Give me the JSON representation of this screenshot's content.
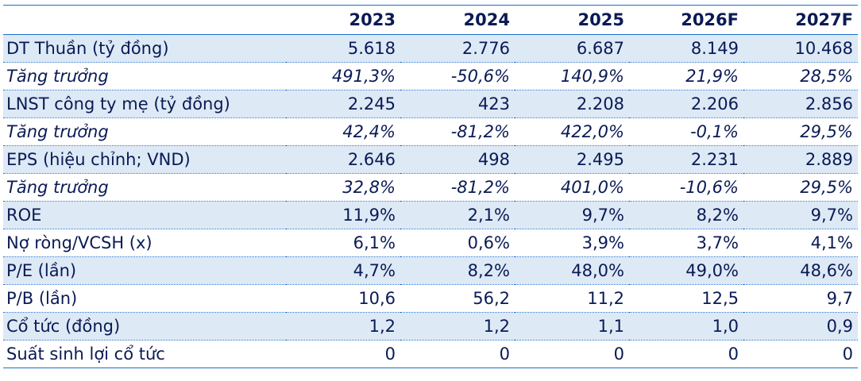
{
  "header": [
    "",
    "2023",
    "2024",
    "2025",
    "2026F",
    "2027F"
  ],
  "rows": [
    {
      "label": "DT Thuần (tỷ đồng)",
      "values": [
        "5.618",
        "2.776",
        "6.687",
        "8.149",
        "10.468"
      ]
    },
    {
      "label": "Tăng trưởng",
      "values": [
        "491,3%",
        "-50,6%",
        "140,9%",
        "21,9%",
        "28,5%"
      ]
    },
    {
      "label": "LNST công ty mẹ (tỷ đồng)",
      "values": [
        "2.245",
        "423",
        "2.208",
        "2.206",
        "2.856"
      ]
    },
    {
      "label": "Tăng trưởng",
      "values": [
        "42,4%",
        "-81,2%",
        "422,0%",
        "-0,1%",
        "29,5%"
      ]
    },
    {
      "label": "EPS (hiệu chỉnh; VND)",
      "values": [
        "2.646",
        "498",
        "2.495",
        "2.231",
        "2.889"
      ]
    },
    {
      "label": "Tăng trưởng",
      "values": [
        "32,8%",
        "-81,2%",
        "401,0%",
        "-10,6%",
        "29,5%"
      ]
    },
    {
      "label": "ROE",
      "values": [
        "11,9%",
        "2,1%",
        "9,7%",
        "8,2%",
        "9,7%"
      ]
    },
    {
      "label": "Nợ ròng/VCSH (x)",
      "values": [
        "6,1%",
        "0,6%",
        "3,9%",
        "3,7%",
        "4,1%"
      ]
    },
    {
      "label": "P/E (lần)",
      "values": [
        "4,7%",
        "8,2%",
        "48,0%",
        "49,0%",
        "48,6%"
      ]
    },
    {
      "label": "P/B (lần)",
      "values": [
        "10,6",
        "56,2",
        "11,2",
        "12,5",
        "9,7"
      ]
    },
    {
      "label": "Cổ tức (đồng)",
      "values": [
        "1,2",
        "1,2",
        "1,1",
        "1,0",
        "0,9"
      ]
    },
    {
      "label": "Suất sinh lợi cổ tức",
      "values": [
        "0",
        "0",
        "0",
        "0",
        "0"
      ]
    }
  ],
  "colors": {
    "text": "#0a1a55",
    "shade": "#dde9f5",
    "rule": "#1a6fd1"
  }
}
